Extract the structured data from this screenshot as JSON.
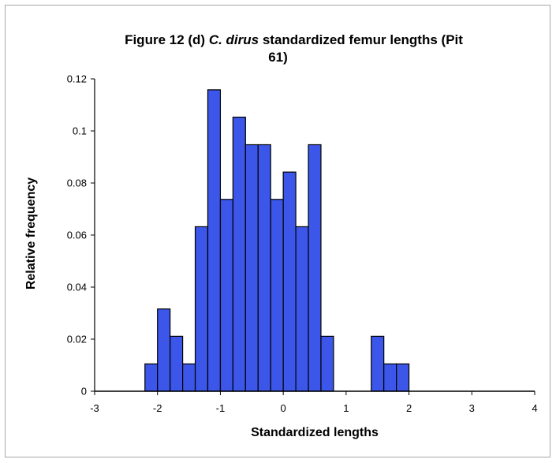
{
  "chart_data": {
    "type": "bar",
    "title_parts": [
      {
        "text": "Figure 12 (d) ",
        "italic": false
      },
      {
        "text": "C. dirus",
        "italic": true
      },
      {
        "text": " standardized femur lengths (Pit",
        "italic": false
      }
    ],
    "title_line2": "61)",
    "xlabel": "Standardized lengths",
    "ylabel": "Relative frequency",
    "xlim": [
      -3,
      4
    ],
    "ylim": [
      0,
      0.12
    ],
    "x_ticks": [
      -3,
      -2,
      -1,
      0,
      1,
      2,
      3,
      4
    ],
    "y_ticks": [
      "0",
      "0.02",
      "0.04",
      "0.06",
      "0.08",
      "0.1",
      "0.12"
    ],
    "bin_width": 0.2,
    "bin_start": -2.2,
    "values": [
      0.0105,
      0.0316,
      0.0211,
      0.0105,
      0.0632,
      0.1158,
      0.0737,
      0.1053,
      0.0947,
      0.0947,
      0.0737,
      0.0842,
      0.0632,
      0.0947,
      0.0211,
      0,
      0,
      0,
      0.0211,
      0.0105,
      0.0105
    ],
    "bar_color": "#3b56e8",
    "bar_edge": "#000000",
    "grid": false,
    "legend": "none"
  }
}
